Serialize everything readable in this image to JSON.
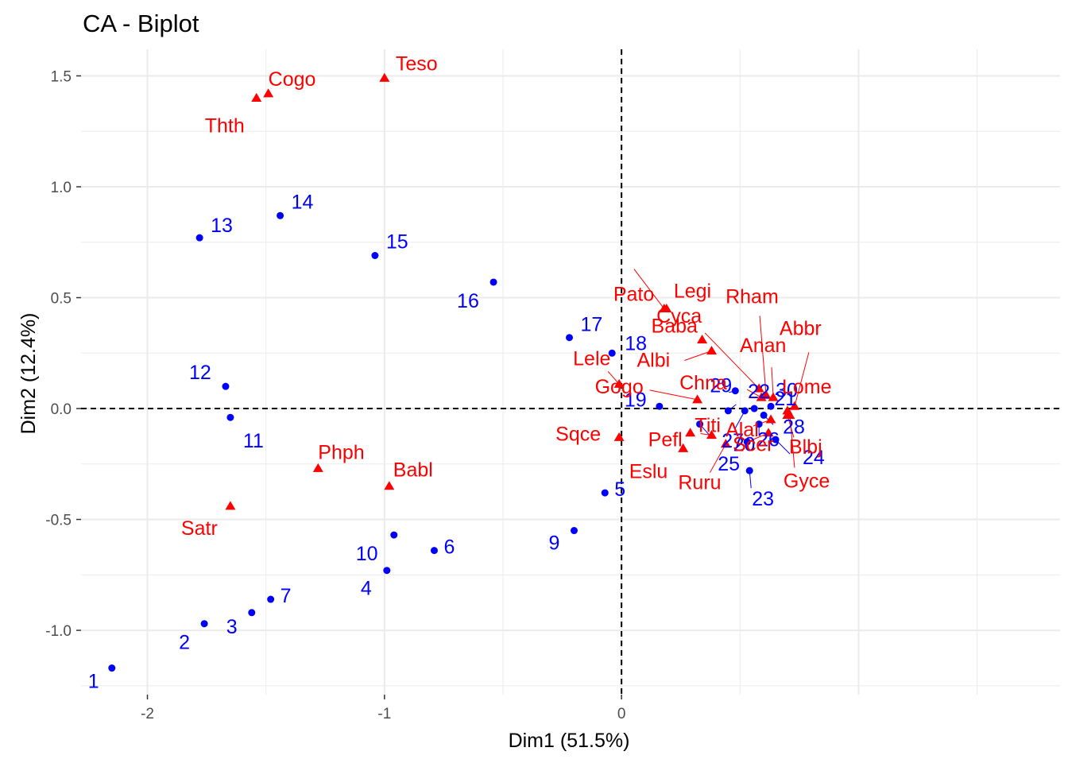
{
  "chart_data": {
    "type": "scatter",
    "title": "CA - Biplot",
    "xlabel": "Dim1 (51.5%)",
    "ylabel": "Dim2 (12.4%)",
    "xlim": [
      -2.28,
      1.85
    ],
    "ylim": [
      -1.29,
      1.62
    ],
    "x_ticks": [
      -2,
      -1,
      0
    ],
    "x_tick_labels": [
      "-2",
      "-1",
      "0"
    ],
    "y_ticks": [
      -1.0,
      -0.5,
      0.0,
      0.5,
      1.0,
      1.5
    ],
    "y_tick_labels": [
      "-1.0",
      "-0.5",
      "0.0",
      "0.5",
      "1.0",
      "1.5"
    ],
    "grid": true,
    "reference_lines": {
      "x": 0,
      "y": 0,
      "style": "dashed"
    },
    "colors": {
      "rows": "#0000ff",
      "columns": "#ff0000",
      "grid": "#ebebeb",
      "axis_text": "#4d4d4d"
    },
    "series": [
      {
        "marker": "circle",
        "color": "#0000ff",
        "points": [
          {
            "label": "1",
            "x": -2.15,
            "y": -1.17
          },
          {
            "label": "2",
            "x": -1.76,
            "y": -0.97
          },
          {
            "label": "3",
            "x": -1.56,
            "y": -0.92
          },
          {
            "label": "4",
            "x": -0.99,
            "y": -0.73
          },
          {
            "label": "5",
            "x": -0.07,
            "y": -0.38
          },
          {
            "label": "6",
            "x": -0.79,
            "y": -0.64
          },
          {
            "label": "7",
            "x": -1.48,
            "y": -0.86
          },
          {
            "label": "9",
            "x": -0.2,
            "y": -0.55
          },
          {
            "label": "10",
            "x": -0.96,
            "y": -0.57
          },
          {
            "label": "11",
            "x": -1.65,
            "y": -0.04
          },
          {
            "label": "12",
            "x": -1.67,
            "y": 0.1
          },
          {
            "label": "13",
            "x": -1.78,
            "y": 0.77
          },
          {
            "label": "14",
            "x": -1.44,
            "y": 0.87
          },
          {
            "label": "15",
            "x": -1.04,
            "y": 0.69
          },
          {
            "label": "16",
            "x": -0.54,
            "y": 0.57
          },
          {
            "label": "17",
            "x": -0.22,
            "y": 0.32
          },
          {
            "label": "18",
            "x": -0.04,
            "y": 0.25
          },
          {
            "label": "19",
            "x": 0.16,
            "y": 0.01
          },
          {
            "label": "20",
            "x": 0.33,
            "y": -0.07
          },
          {
            "label": "21",
            "x": 0.45,
            "y": -0.01
          },
          {
            "label": "22",
            "x": 0.56,
            "y": 0.0
          },
          {
            "label": "23",
            "x": 0.54,
            "y": -0.28
          },
          {
            "label": "24",
            "x": 0.65,
            "y": -0.14
          },
          {
            "label": "25",
            "x": 0.53,
            "y": -0.15
          },
          {
            "label": "26",
            "x": 0.58,
            "y": -0.07
          },
          {
            "label": "27",
            "x": 0.52,
            "y": -0.01
          },
          {
            "label": "28",
            "x": 0.6,
            "y": -0.03
          },
          {
            "label": "29",
            "x": 0.48,
            "y": 0.08
          },
          {
            "label": "30",
            "x": 0.63,
            "y": 0.01
          }
        ]
      },
      {
        "marker": "triangle",
        "color": "#ff0000",
        "points": [
          {
            "label": "Abbr",
            "x": 0.73,
            "y": 0.01
          },
          {
            "label": "Albi",
            "x": 0.38,
            "y": 0.26
          },
          {
            "label": "Alal",
            "x": 0.63,
            "y": -0.05
          },
          {
            "label": "Anan",
            "x": 0.64,
            "y": 0.05
          },
          {
            "label": "Baba",
            "x": 0.34,
            "y": 0.31
          },
          {
            "label": "Babl",
            "x": -0.98,
            "y": -0.35
          },
          {
            "label": "Blbj",
            "x": 0.7,
            "y": -0.03
          },
          {
            "label": "Chna",
            "x": 0.59,
            "y": 0.05
          },
          {
            "label": "Cogo",
            "x": -1.49,
            "y": 1.42
          },
          {
            "label": "Cyca",
            "x": 0.58,
            "y": 0.09
          },
          {
            "label": "Eslu",
            "x": 0.26,
            "y": -0.18
          },
          {
            "label": "Gogo",
            "x": 0.32,
            "y": 0.04
          },
          {
            "label": "Gyce",
            "x": 0.71,
            "y": -0.03
          },
          {
            "label": "Lele",
            "x": -0.01,
            "y": 0.11
          },
          {
            "label": "Legi",
            "x": 0.18,
            "y": 0.45
          },
          {
            "label": "Lome",
            "x": 0.7,
            "y": -0.01
          },
          {
            "label": "Pato",
            "x": 0.19,
            "y": 0.45
          },
          {
            "label": "Pefl",
            "x": 0.29,
            "y": -0.11
          },
          {
            "label": "Phph",
            "x": -1.28,
            "y": -0.27
          },
          {
            "label": "Rham",
            "x": 0.61,
            "y": 0.06
          },
          {
            "label": "Ruru",
            "x": 0.44,
            "y": -0.16
          },
          {
            "label": "Satr",
            "x": -1.65,
            "y": -0.44
          },
          {
            "label": "Scer",
            "x": 0.62,
            "y": -0.11
          },
          {
            "label": "Sqce",
            "x": -0.01,
            "y": -0.13
          },
          {
            "label": "Teso",
            "x": -1.0,
            "y": 1.49
          },
          {
            "label": "Thth",
            "x": -1.54,
            "y": 1.4
          },
          {
            "label": "Titi",
            "x": 0.38,
            "y": -0.12
          }
        ]
      }
    ]
  }
}
